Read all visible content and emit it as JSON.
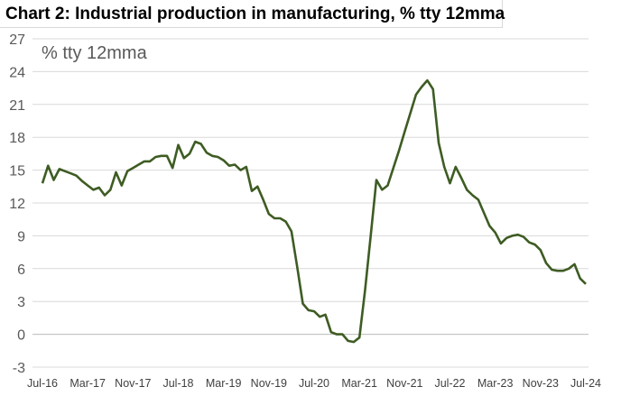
{
  "title": "Chart 2: Industrial production in manufacturing, % tty 12mma",
  "chart_data": {
    "type": "line",
    "title": "Chart 2: Industrial production in manufacturing, % tty 12mma",
    "annotation": "% tty 12mma",
    "ylim": [
      -3,
      27
    ],
    "yticks": [
      -3,
      0,
      3,
      6,
      9,
      12,
      15,
      18,
      21,
      24,
      27
    ],
    "grid": true,
    "line_color": "#3e5c23",
    "x_tick_labels": [
      "Jul-16",
      "Mar-17",
      "Nov-17",
      "Jul-18",
      "Mar-19",
      "Nov-19",
      "Jul-20",
      "Mar-21",
      "Nov-21",
      "Jul-22",
      "Mar-23",
      "Nov-23",
      "Jul-24"
    ],
    "series": [
      {
        "x": [
          "Jul-16",
          "Aug-16",
          "Sep-16",
          "Oct-16",
          "Nov-16",
          "Dec-16",
          "Jan-17",
          "Feb-17",
          "Mar-17",
          "Apr-17",
          "May-17",
          "Jun-17",
          "Jul-17",
          "Aug-17",
          "Sep-17",
          "Oct-17",
          "Nov-17",
          "Dec-17",
          "Jan-18",
          "Feb-18",
          "Mar-18",
          "Apr-18",
          "May-18",
          "Jun-18",
          "Jul-18",
          "Aug-18",
          "Sep-18",
          "Oct-18",
          "Nov-18",
          "Dec-18",
          "Jan-19",
          "Feb-19",
          "Mar-19",
          "Apr-19",
          "May-19",
          "Jun-19",
          "Jul-19",
          "Aug-19",
          "Sep-19",
          "Oct-19",
          "Nov-19",
          "Dec-19",
          "Jan-20",
          "Feb-20",
          "Mar-20",
          "Apr-20",
          "May-20",
          "Jun-20",
          "Jul-20",
          "Aug-20",
          "Sep-20",
          "Oct-20",
          "Nov-20",
          "Dec-20",
          "Jan-21",
          "Feb-21",
          "Mar-21",
          "Apr-21",
          "May-21",
          "Jun-21",
          "Jul-21",
          "Aug-21",
          "Sep-21",
          "Oct-21",
          "Nov-21",
          "Dec-21",
          "Jan-22",
          "Feb-22",
          "Mar-22",
          "Apr-22",
          "May-22",
          "Jun-22",
          "Jul-22",
          "Aug-22",
          "Sep-22",
          "Oct-22",
          "Nov-22",
          "Dec-22",
          "Jan-23",
          "Feb-23",
          "Mar-23",
          "Apr-23",
          "May-23",
          "Jun-23",
          "Jul-23",
          "Aug-23",
          "Sep-23",
          "Oct-23",
          "Nov-23",
          "Dec-23",
          "Jan-24",
          "Feb-24",
          "Mar-24",
          "Apr-24",
          "May-24",
          "Jun-24",
          "Jul-24"
        ],
        "values": [
          13.8,
          15.4,
          14.1,
          15.1,
          14.9,
          14.7,
          14.5,
          14.0,
          13.6,
          13.2,
          13.4,
          12.7,
          13.2,
          14.8,
          13.6,
          14.9,
          15.2,
          15.5,
          15.8,
          15.8,
          16.2,
          16.3,
          16.3,
          15.2,
          17.3,
          16.1,
          16.5,
          17.6,
          17.4,
          16.6,
          16.3,
          16.2,
          15.9,
          15.4,
          15.5,
          15.0,
          15.3,
          13.1,
          13.5,
          12.3,
          11.0,
          10.6,
          10.6,
          10.3,
          9.4,
          6.2,
          2.8,
          2.2,
          2.1,
          1.6,
          1.8,
          0.2,
          0.0,
          0.0,
          -0.6,
          -0.7,
          -0.3,
          4.0,
          9.0,
          14.1,
          13.2,
          13.6,
          15.2,
          16.8,
          18.5,
          20.2,
          21.9,
          22.6,
          23.2,
          22.4,
          17.5,
          15.3,
          13.8,
          15.3,
          14.3,
          13.2,
          12.7,
          12.3,
          11.1,
          9.9,
          9.3,
          8.3,
          8.8,
          9.0,
          9.1,
          8.9,
          8.4,
          8.2,
          7.7,
          6.5,
          5.9,
          5.8,
          5.8,
          6.0,
          6.4,
          5.1,
          4.6
        ]
      }
    ]
  }
}
